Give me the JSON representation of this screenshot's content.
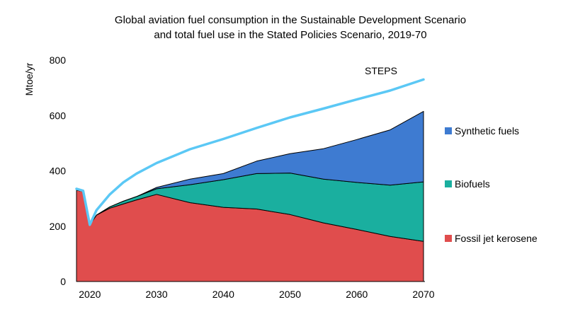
{
  "chart_data": {
    "type": "area",
    "title": "Global aviation fuel consumption in the Sustainable Development Scenario",
    "subtitle": "and total fuel use in the Stated Policies Scenario, 2019-70",
    "ylabel": "Mtoe/yr",
    "xlabel": "",
    "xlim": [
      2018,
      2070
    ],
    "ylim": [
      0,
      800
    ],
    "yticks": [
      0,
      200,
      400,
      600,
      800
    ],
    "xticks": [
      2020,
      2030,
      2040,
      2050,
      2060,
      2070
    ],
    "stacked": true,
    "legend_position": "right",
    "x": [
      2018,
      2019,
      2020,
      2021,
      2023,
      2025,
      2027,
      2030,
      2035,
      2040,
      2045,
      2050,
      2055,
      2060,
      2065,
      2070
    ],
    "series": [
      {
        "name": "Fossil jet kerosene",
        "color": "#e04d4d",
        "values": [
          330,
          325,
          205,
          240,
          265,
          280,
          295,
          315,
          285,
          268,
          262,
          242,
          212,
          188,
          163,
          145
        ]
      },
      {
        "name": "Biofuels",
        "color": "#1aaf9f",
        "values": [
          0,
          0,
          0,
          0,
          5,
          10,
          12,
          20,
          65,
          100,
          128,
          150,
          158,
          170,
          185,
          215
        ]
      },
      {
        "name": "Synthetic fuels",
        "color": "#3e7bd1",
        "values": [
          0,
          0,
          0,
          0,
          0,
          0,
          0,
          5,
          20,
          22,
          45,
          70,
          110,
          155,
          200,
          255
        ]
      }
    ],
    "line_series": {
      "name": "STEPS",
      "color": "#5bc8f5",
      "x": [
        2018,
        2019,
        2020,
        2021,
        2023,
        2025,
        2027,
        2030,
        2035,
        2040,
        2045,
        2050,
        2055,
        2060,
        2065,
        2070
      ],
      "values": [
        335,
        328,
        205,
        258,
        315,
        358,
        390,
        428,
        478,
        515,
        555,
        593,
        625,
        658,
        690,
        730
      ],
      "label": "STEPS"
    }
  }
}
